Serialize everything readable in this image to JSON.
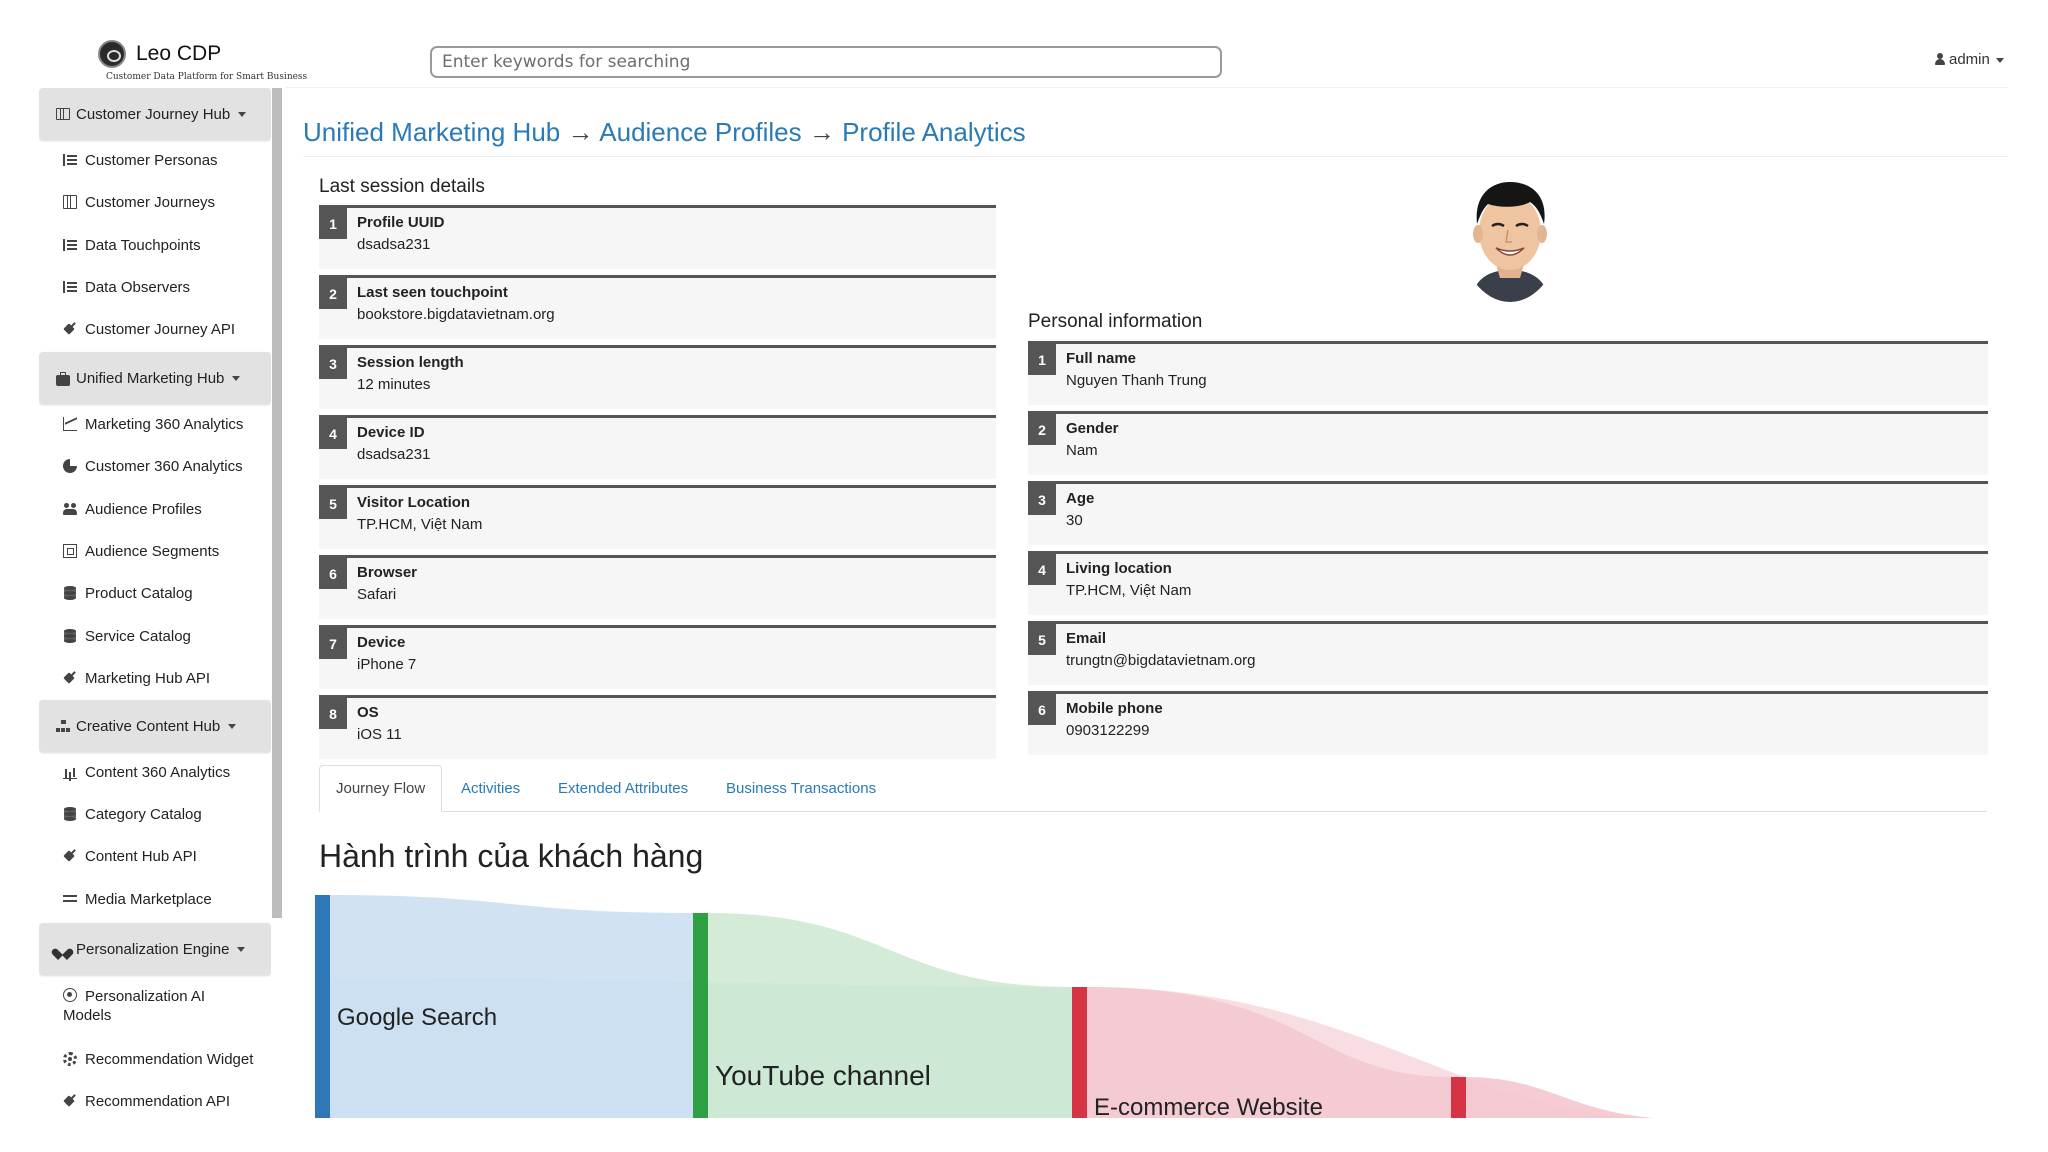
{
  "app": {
    "logo_title": "Leo CDP",
    "logo_subtitle": "Customer Data Platform for Smart Business",
    "search_placeholder": "Enter keywords for searching",
    "user_label": "admin"
  },
  "sidebar": {
    "groups": [
      {
        "label": "Customer Journey Hub",
        "icon": "map-icon",
        "items": [
          {
            "label": "Customer Personas",
            "icon": "list-icon"
          },
          {
            "label": "Customer Journeys",
            "icon": "map-icon"
          },
          {
            "label": "Data Touchpoints",
            "icon": "list-icon"
          },
          {
            "label": "Data Observers",
            "icon": "list-icon"
          },
          {
            "label": "Customer Journey API",
            "icon": "plug-icon"
          }
        ]
      },
      {
        "label": "Unified Marketing Hub",
        "icon": "briefcase-icon",
        "items": [
          {
            "label": "Marketing 360 Analytics",
            "icon": "line-chart-icon"
          },
          {
            "label": "Customer 360 Analytics",
            "icon": "pie-chart-icon"
          },
          {
            "label": "Audience Profiles",
            "icon": "users-icon"
          },
          {
            "label": "Audience Segments",
            "icon": "segment-icon"
          },
          {
            "label": "Product Catalog",
            "icon": "database-icon"
          },
          {
            "label": "Service Catalog",
            "icon": "database-icon"
          },
          {
            "label": "Marketing Hub API",
            "icon": "plug-icon"
          }
        ]
      },
      {
        "label": "Creative Content Hub",
        "icon": "sitemap-icon",
        "items": [
          {
            "label": "Content 360 Analytics",
            "icon": "bar-chart-icon"
          },
          {
            "label": "Category Catalog",
            "icon": "database-icon"
          },
          {
            "label": "Content Hub API",
            "icon": "plug-icon"
          },
          {
            "label": "Media Marketplace",
            "icon": "exchange-icon"
          }
        ]
      },
      {
        "label": "Personalization Engine",
        "icon": "heart-icon",
        "items": [
          {
            "label": "Personalization AI Models",
            "icon": "robot-icon"
          },
          {
            "label": "Recommendation Widget",
            "icon": "cog-icon"
          },
          {
            "label": "Recommendation API",
            "icon": "plug-icon"
          }
        ]
      }
    ]
  },
  "breadcrumb": {
    "part1": "Unified Marketing Hub",
    "sep": "→",
    "part2": "Audience Profiles",
    "part3": "Profile Analytics"
  },
  "session": {
    "title": "Last session details",
    "items": [
      {
        "n": "1",
        "label": "Profile UUID",
        "value": "dsadsa231"
      },
      {
        "n": "2",
        "label": "Last seen touchpoint",
        "value": "bookstore.bigdatavietnam.org"
      },
      {
        "n": "3",
        "label": "Session length",
        "value": "12 minutes"
      },
      {
        "n": "4",
        "label": "Device ID",
        "value": "dsadsa231"
      },
      {
        "n": "5",
        "label": "Visitor Location",
        "value": "TP.HCM, Việt Nam"
      },
      {
        "n": "6",
        "label": "Browser",
        "value": "Safari"
      },
      {
        "n": "7",
        "label": "Device",
        "value": "iPhone 7"
      },
      {
        "n": "8",
        "label": "OS",
        "value": "iOS 11"
      }
    ]
  },
  "personal": {
    "title": "Personal information",
    "items": [
      {
        "n": "1",
        "label": "Full name",
        "value": "Nguyen Thanh Trung"
      },
      {
        "n": "2",
        "label": "Gender",
        "value": "Nam"
      },
      {
        "n": "3",
        "label": "Age",
        "value": "30"
      },
      {
        "n": "4",
        "label": "Living location",
        "value": "TP.HCM, Việt Nam"
      },
      {
        "n": "5",
        "label": "Email",
        "value": "trungtn@bigdatavietnam.org"
      },
      {
        "n": "6",
        "label": "Mobile phone",
        "value": "0903122299"
      }
    ]
  },
  "tabs": [
    "Journey Flow",
    "Activities",
    "Extended Attributes",
    "Business Transactions"
  ],
  "journey": {
    "title": "Hành trình của khách hàng",
    "nodes": [
      {
        "label": "Google Search",
        "color": "#2e78b6"
      },
      {
        "label": "YouTube channel",
        "color": "#2ea043"
      },
      {
        "label": "E-commerce Website",
        "color": "#d63445"
      },
      {
        "label": "",
        "color": "#d63445"
      }
    ],
    "link_colors": {
      "blue": "#c9def0",
      "green": "#c5e6c9",
      "red": "#f4c7cf"
    }
  },
  "colors": {
    "link": "#2a7ab8",
    "card_number": "#555555",
    "sidebar_group": "#e2e2e2"
  }
}
